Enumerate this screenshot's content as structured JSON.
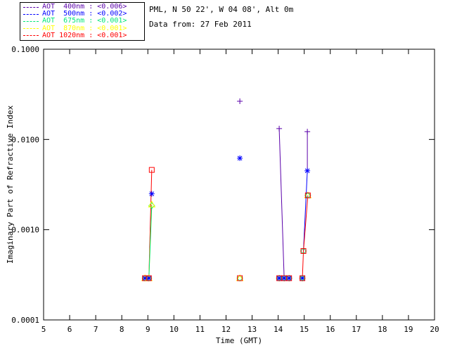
{
  "header": {
    "line1": "PML, N 50 22', W 04 08', Alt 0m",
    "line2": "Data from: 27 Feb 2011"
  },
  "legend": {
    "position": "top-left",
    "items": [
      {
        "text": "AOT  400nm : <0.006>",
        "color": "#5a00aa"
      },
      {
        "text": "AOT  500nm : <0.002>",
        "color": "#0000ff"
      },
      {
        "text": "AOT  675nm : <0.001>",
        "color": "#00e678"
      },
      {
        "text": "AOT  870nm : <0.001>",
        "color": "#ffff00"
      },
      {
        "text": "AOT 1020nm : <0.001>",
        "color": "#ff0000"
      }
    ]
  },
  "chart_data": {
    "type": "scatter",
    "title": "",
    "xlabel": "Time (GMT)",
    "ylabel": "Imaginary Part of Refractive Index",
    "xlim": [
      5,
      20
    ],
    "ylim": [
      0.0001,
      0.1
    ],
    "ylog": true,
    "grid": false,
    "x_ticks": [
      "5",
      "6",
      "7",
      "8",
      "9",
      "10",
      "11",
      "12",
      "13",
      "14",
      "15",
      "16",
      "17",
      "18",
      "19",
      "20"
    ],
    "y_ticks": [
      {
        "v": 0.1,
        "label": "0.1000"
      },
      {
        "v": 0.01,
        "label": "0.0100"
      },
      {
        "v": 0.001,
        "label": "0.0010"
      },
      {
        "v": 0.0001,
        "label": "0.0001"
      }
    ],
    "series": [
      {
        "name": "AOT 400nm",
        "color": "#5a00aa",
        "marker": "plus"
      },
      {
        "name": "AOT 500nm",
        "color": "#0000ff",
        "marker": "asterisk"
      },
      {
        "name": "AOT 675nm",
        "color": "#00e678",
        "marker": "diamond"
      },
      {
        "name": "AOT 870nm",
        "color": "#ffff00",
        "marker": "triangle"
      },
      {
        "name": "AOT 1020nm",
        "color": "#ff0000",
        "marker": "square"
      }
    ],
    "points": [
      {
        "s": 2,
        "x": 8.89,
        "y": 0.00029
      },
      {
        "s": 3,
        "x": 8.89,
        "y": 0.00029
      },
      {
        "s": 1,
        "x": 8.89,
        "y": 0.00029
      },
      {
        "s": 4,
        "x": 8.89,
        "y": 0.00029
      },
      {
        "s": 2,
        "x": 9.04,
        "y": 0.00029
      },
      {
        "s": 3,
        "x": 9.04,
        "y": 0.00029
      },
      {
        "s": 1,
        "x": 9.04,
        "y": 0.00029
      },
      {
        "s": 4,
        "x": 9.04,
        "y": 0.00029
      },
      {
        "s": 2,
        "x": 9.15,
        "y": 0.00185
      },
      {
        "s": 3,
        "x": 9.15,
        "y": 0.0019
      },
      {
        "s": 1,
        "x": 9.15,
        "y": 0.0025
      },
      {
        "s": 4,
        "x": 9.15,
        "y": 0.0046
      },
      {
        "s": 0,
        "x": 12.53,
        "y": 0.0265
      },
      {
        "s": 1,
        "x": 12.53,
        "y": 0.0062
      },
      {
        "s": 2,
        "x": 12.53,
        "y": 0.00029
      },
      {
        "s": 3,
        "x": 12.53,
        "y": 0.00029
      },
      {
        "s": 4,
        "x": 12.53,
        "y": 0.00029
      },
      {
        "s": 0,
        "x": 14.04,
        "y": 0.0132
      },
      {
        "s": 2,
        "x": 14.04,
        "y": 0.00029
      },
      {
        "s": 1,
        "x": 14.04,
        "y": 0.00029
      },
      {
        "s": 4,
        "x": 14.04,
        "y": 0.00029
      },
      {
        "s": 2,
        "x": 14.23,
        "y": 0.00029
      },
      {
        "s": 1,
        "x": 14.23,
        "y": 0.00029
      },
      {
        "s": 4,
        "x": 14.23,
        "y": 0.00029
      },
      {
        "s": 2,
        "x": 14.42,
        "y": 0.00029
      },
      {
        "s": 1,
        "x": 14.42,
        "y": 0.00029
      },
      {
        "s": 4,
        "x": 14.42,
        "y": 0.00029
      },
      {
        "s": 0,
        "x": 15.12,
        "y": 0.0122
      },
      {
        "s": 1,
        "x": 15.12,
        "y": 0.0045
      },
      {
        "s": 3,
        "x": 15.14,
        "y": 0.0024
      },
      {
        "s": 2,
        "x": 15.14,
        "y": 0.0024
      },
      {
        "s": 4,
        "x": 15.14,
        "y": 0.0024
      },
      {
        "s": 2,
        "x": 14.97,
        "y": 0.00058
      },
      {
        "s": 4,
        "x": 14.97,
        "y": 0.00058
      },
      {
        "s": 1,
        "x": 14.93,
        "y": 0.00029
      },
      {
        "s": 2,
        "x": 14.93,
        "y": 0.00029
      },
      {
        "s": 4,
        "x": 14.93,
        "y": 0.00029
      }
    ],
    "lines": [
      {
        "s": 4,
        "pts": [
          [
            8.89,
            0.00029
          ],
          [
            9.04,
            0.00029
          ],
          [
            9.15,
            0.0046
          ]
        ]
      },
      {
        "s": 3,
        "pts": [
          [
            9.04,
            0.00029
          ],
          [
            9.15,
            0.0019
          ]
        ]
      },
      {
        "s": 2,
        "pts": [
          [
            9.04,
            0.00029
          ],
          [
            9.15,
            0.00185
          ]
        ]
      },
      {
        "s": 0,
        "pts": [
          [
            14.04,
            0.0132
          ],
          [
            14.23,
            0.00029
          ]
        ]
      },
      {
        "s": 4,
        "pts": [
          [
            14.04,
            0.00029
          ],
          [
            14.42,
            0.00029
          ]
        ]
      },
      {
        "s": 0,
        "pts": [
          [
            15.12,
            0.0122
          ],
          [
            15.12,
            0.0045
          ]
        ]
      },
      {
        "s": 1,
        "pts": [
          [
            15.12,
            0.0045
          ],
          [
            14.97,
            0.00058
          ]
        ]
      },
      {
        "s": 4,
        "pts": [
          [
            15.14,
            0.0024
          ],
          [
            14.97,
            0.00058
          ],
          [
            14.93,
            0.00029
          ]
        ]
      }
    ]
  }
}
